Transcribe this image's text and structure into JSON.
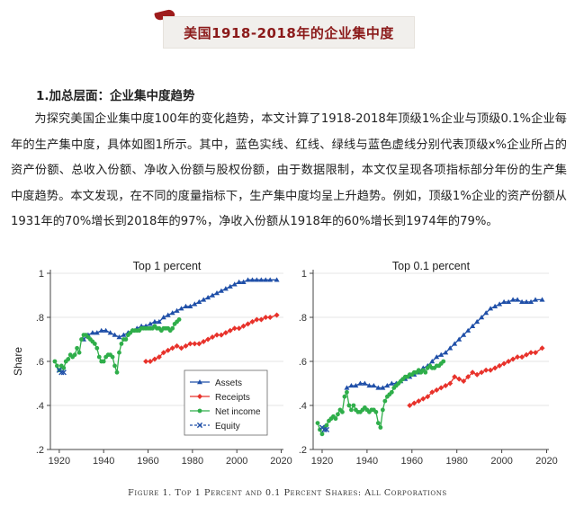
{
  "page": {
    "title": "美国1918-2018年的企业集中度",
    "section_heading": "1.加总层面：企业集中度趋势",
    "paragraph": "为探究美国企业集中度100年的变化趋势，本文计算了1918-2018年顶级1%企业与顶级0.1%企业每年的生产集中度，具体如图1所示。其中，蓝色实线、红线、绿线与蓝色虚线分别代表顶级x%企业所占的资产份额、总收入份额、净收入份额与股权份额，由于数据限制，本文仅呈现各项指标部分年份的生产集中度趋势。本文发现，在不同的度量指标下，生产集中度均呈上升趋势。例如，顶级1%企业的资产份额从1931年的70%增长到2018年的97%，净收入份额从1918年的60%增长到1974年的79%。",
    "caption": "Figure 1. Top 1 Percent and 0.1 Percent Shares: All Corporations"
  },
  "colors": {
    "title": "#8b1a1a",
    "assets": "#1f4fa8",
    "receipts": "#e8322b",
    "net_income": "#2fae4a",
    "equity": "#1f4fa8"
  },
  "chart_data": [
    {
      "type": "line",
      "title": "Top 1 percent",
      "xlabel": "",
      "ylabel": "Share",
      "xlim": [
        1916,
        2021
      ],
      "ylim": [
        0.2,
        1.0
      ],
      "xticks": [
        1920,
        1940,
        1960,
        1980,
        2000,
        2020
      ],
      "yticks": [
        0.2,
        0.4,
        0.6,
        0.8,
        1.0
      ],
      "ytick_labels": [
        ".2",
        ".4",
        ".6",
        ".8",
        "1"
      ],
      "legend": [
        "Assets",
        "Receipts",
        "Net income",
        "Equity"
      ],
      "series": [
        {
          "name": "Assets",
          "x": [
            1931,
            1933,
            1935,
            1937,
            1939,
            1941,
            1943,
            1945,
            1947,
            1949,
            1951,
            1953,
            1955,
            1957,
            1959,
            1961,
            1963,
            1965,
            1967,
            1969,
            1971,
            1973,
            1975,
            1977,
            1979,
            1981,
            1983,
            1985,
            1987,
            1989,
            1991,
            1993,
            1995,
            1997,
            1999,
            2001,
            2003,
            2005,
            2007,
            2009,
            2011,
            2013,
            2015,
            2018
          ],
          "y": [
            0.7,
            0.72,
            0.73,
            0.73,
            0.74,
            0.74,
            0.73,
            0.72,
            0.71,
            0.72,
            0.73,
            0.74,
            0.75,
            0.76,
            0.76,
            0.77,
            0.78,
            0.78,
            0.8,
            0.81,
            0.82,
            0.83,
            0.84,
            0.85,
            0.85,
            0.86,
            0.87,
            0.88,
            0.89,
            0.9,
            0.91,
            0.92,
            0.93,
            0.94,
            0.95,
            0.96,
            0.96,
            0.97,
            0.97,
            0.97,
            0.97,
            0.97,
            0.97,
            0.97
          ]
        },
        {
          "name": "Receipts",
          "x": [
            1959,
            1961,
            1963,
            1965,
            1967,
            1969,
            1971,
            1973,
            1975,
            1977,
            1979,
            1981,
            1983,
            1985,
            1987,
            1989,
            1991,
            1993,
            1995,
            1997,
            1999,
            2001,
            2003,
            2005,
            2007,
            2009,
            2011,
            2013,
            2015,
            2018
          ],
          "y": [
            0.6,
            0.6,
            0.61,
            0.62,
            0.64,
            0.65,
            0.66,
            0.67,
            0.66,
            0.67,
            0.68,
            0.68,
            0.68,
            0.69,
            0.7,
            0.71,
            0.72,
            0.72,
            0.73,
            0.74,
            0.75,
            0.75,
            0.76,
            0.77,
            0.78,
            0.79,
            0.79,
            0.8,
            0.8,
            0.81
          ]
        },
        {
          "name": "Net income",
          "x": [
            1918,
            1919,
            1920,
            1921,
            1922,
            1923,
            1924,
            1925,
            1926,
            1927,
            1928,
            1929,
            1930,
            1931,
            1932,
            1933,
            1934,
            1935,
            1936,
            1937,
            1938,
            1939,
            1940,
            1941,
            1942,
            1943,
            1944,
            1945,
            1946,
            1947,
            1948,
            1949,
            1950,
            1951,
            1952,
            1953,
            1954,
            1955,
            1956,
            1957,
            1958,
            1959,
            1960,
            1961,
            1962,
            1963,
            1964,
            1965,
            1966,
            1967,
            1968,
            1969,
            1970,
            1971,
            1972,
            1973,
            1974
          ],
          "y": [
            0.6,
            0.58,
            0.56,
            0.58,
            0.57,
            0.6,
            0.61,
            0.63,
            0.62,
            0.63,
            0.66,
            0.64,
            0.7,
            0.72,
            0.72,
            0.71,
            0.7,
            0.69,
            0.68,
            0.66,
            0.62,
            0.6,
            0.6,
            0.62,
            0.63,
            0.63,
            0.62,
            0.58,
            0.55,
            0.64,
            0.68,
            0.7,
            0.7,
            0.72,
            0.73,
            0.74,
            0.74,
            0.74,
            0.74,
            0.75,
            0.75,
            0.75,
            0.75,
            0.75,
            0.75,
            0.76,
            0.75,
            0.75,
            0.74,
            0.75,
            0.75,
            0.75,
            0.74,
            0.75,
            0.77,
            0.78,
            0.79
          ]
        },
        {
          "name": "Equity",
          "x": [
            1920,
            1921,
            1922
          ],
          "y": [
            0.56,
            0.55,
            0.55
          ]
        }
      ]
    },
    {
      "type": "line",
      "title": "Top 0.1 percent",
      "xlabel": "",
      "ylabel": "",
      "xlim": [
        1916,
        2021
      ],
      "ylim": [
        0.2,
        1.0
      ],
      "xticks": [
        1920,
        1940,
        1960,
        1980,
        2000,
        2020
      ],
      "yticks": [
        0.2,
        0.4,
        0.6,
        0.8,
        1.0
      ],
      "ytick_labels": [
        ".2",
        ".4",
        ".6",
        ".8",
        "1"
      ],
      "series": [
        {
          "name": "Assets",
          "x": [
            1931,
            1933,
            1935,
            1937,
            1939,
            1941,
            1943,
            1945,
            1947,
            1949,
            1951,
            1953,
            1955,
            1957,
            1959,
            1961,
            1963,
            1965,
            1967,
            1969,
            1971,
            1973,
            1975,
            1977,
            1979,
            1981,
            1983,
            1985,
            1987,
            1989,
            1991,
            1993,
            1995,
            1997,
            1999,
            2001,
            2003,
            2005,
            2007,
            2009,
            2011,
            2013,
            2015,
            2018
          ],
          "y": [
            0.48,
            0.49,
            0.49,
            0.5,
            0.5,
            0.49,
            0.49,
            0.48,
            0.48,
            0.49,
            0.5,
            0.5,
            0.51,
            0.52,
            0.53,
            0.54,
            0.55,
            0.57,
            0.58,
            0.6,
            0.62,
            0.63,
            0.64,
            0.66,
            0.68,
            0.7,
            0.72,
            0.74,
            0.76,
            0.78,
            0.8,
            0.82,
            0.84,
            0.85,
            0.86,
            0.87,
            0.87,
            0.88,
            0.88,
            0.87,
            0.87,
            0.87,
            0.88,
            0.88
          ]
        },
        {
          "name": "Receipts",
          "x": [
            1959,
            1961,
            1963,
            1965,
            1967,
            1969,
            1971,
            1973,
            1975,
            1977,
            1979,
            1981,
            1983,
            1985,
            1987,
            1989,
            1991,
            1993,
            1995,
            1997,
            1999,
            2001,
            2003,
            2005,
            2007,
            2009,
            2011,
            2013,
            2015,
            2018
          ],
          "y": [
            0.4,
            0.41,
            0.42,
            0.43,
            0.44,
            0.46,
            0.47,
            0.48,
            0.49,
            0.5,
            0.53,
            0.52,
            0.51,
            0.53,
            0.55,
            0.54,
            0.55,
            0.56,
            0.56,
            0.57,
            0.58,
            0.59,
            0.6,
            0.61,
            0.62,
            0.62,
            0.63,
            0.64,
            0.64,
            0.66
          ]
        },
        {
          "name": "Net income",
          "x": [
            1918,
            1919,
            1920,
            1921,
            1922,
            1923,
            1924,
            1925,
            1926,
            1927,
            1928,
            1929,
            1930,
            1931,
            1932,
            1933,
            1934,
            1935,
            1936,
            1937,
            1938,
            1939,
            1940,
            1941,
            1942,
            1943,
            1944,
            1945,
            1946,
            1947,
            1948,
            1949,
            1950,
            1951,
            1952,
            1953,
            1954,
            1955,
            1956,
            1957,
            1958,
            1959,
            1960,
            1961,
            1962,
            1963,
            1964,
            1965,
            1966,
            1967,
            1968,
            1969,
            1970,
            1971,
            1972,
            1973,
            1974
          ],
          "y": [
            0.32,
            0.29,
            0.27,
            0.3,
            0.31,
            0.33,
            0.34,
            0.35,
            0.34,
            0.36,
            0.38,
            0.37,
            0.44,
            0.46,
            0.4,
            0.38,
            0.4,
            0.38,
            0.37,
            0.37,
            0.38,
            0.39,
            0.38,
            0.37,
            0.38,
            0.38,
            0.37,
            0.32,
            0.3,
            0.38,
            0.42,
            0.44,
            0.45,
            0.46,
            0.48,
            0.49,
            0.5,
            0.51,
            0.52,
            0.53,
            0.53,
            0.54,
            0.54,
            0.55,
            0.55,
            0.56,
            0.55,
            0.56,
            0.55,
            0.57,
            0.58,
            0.57,
            0.57,
            0.58,
            0.58,
            0.59,
            0.6
          ]
        },
        {
          "name": "Equity",
          "x": [
            1920,
            1921,
            1922
          ],
          "y": [
            0.3,
            0.29,
            0.29
          ]
        }
      ]
    }
  ]
}
